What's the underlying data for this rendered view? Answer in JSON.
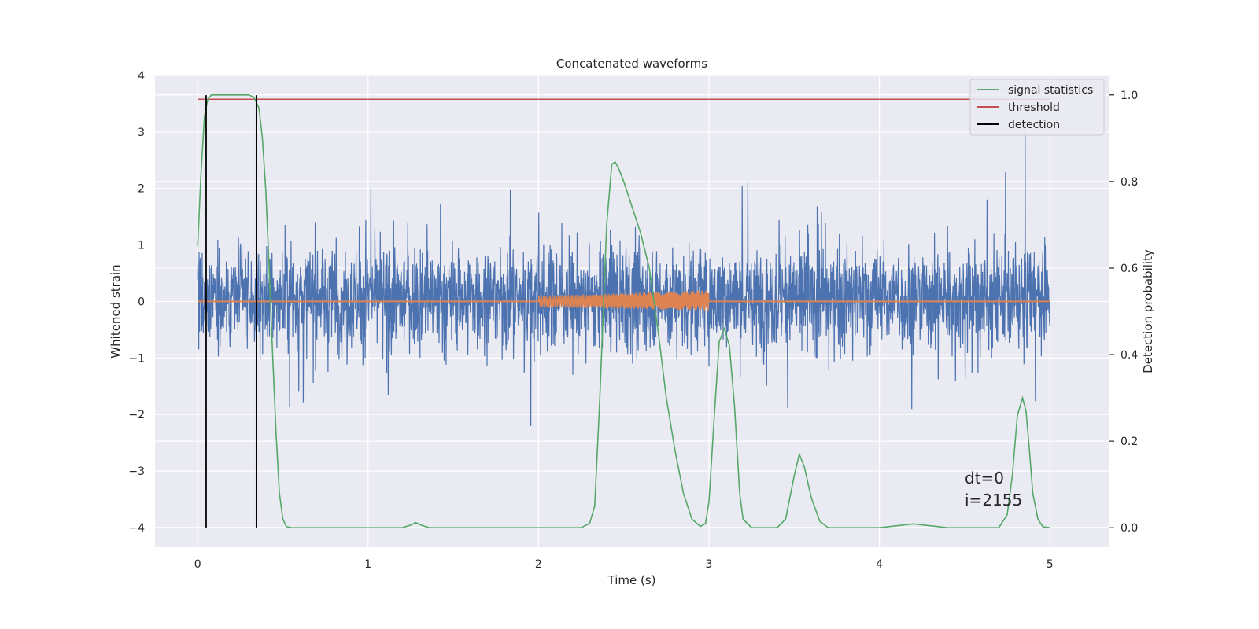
{
  "chart_data": {
    "type": "line",
    "title": "Concatenated waveforms",
    "xlabel": "Time (s)",
    "ylabel_left": "Whitened strain",
    "ylabel_right": "Detection probability",
    "xlim": [
      -0.25,
      5.35
    ],
    "ylim_left": [
      -4.35,
      4.0
    ],
    "ylim_right": [
      -0.045,
      1.045
    ],
    "xticks": [
      0,
      1,
      2,
      3,
      4,
      5
    ],
    "xtick_labels": [
      "0",
      "1",
      "2",
      "3",
      "4",
      "5"
    ],
    "yticks_left": [
      -4,
      -3,
      -2,
      -1,
      0,
      1,
      2,
      3,
      4
    ],
    "ytick_labels_left": [
      "−4",
      "−3",
      "−2",
      "−1",
      "0",
      "1",
      "2",
      "3",
      "4"
    ],
    "yticks_right": [
      0.0,
      0.2,
      0.4,
      0.6,
      0.8,
      1.0
    ],
    "ytick_labels_right": [
      "0.0",
      "0.2",
      "0.4",
      "0.6",
      "0.8",
      "1.0"
    ],
    "grid": true,
    "legend_position": "top-right",
    "annotation": [
      "dt=0",
      "i=2155"
    ],
    "colors": {
      "strain": "#4c72b0",
      "injection": "#dd8452",
      "signal_statistics": "#55a868",
      "threshold": "#c44e52",
      "detection": "#000000",
      "background": "#eaeaf2",
      "grid": "#ffffff"
    },
    "series": [
      {
        "name": "whitened strain (noise)",
        "axis": "left",
        "description_range": {
          "x": [
            0,
            5
          ],
          "typical_amplitude": [
            -1.5,
            2.0
          ],
          "max": 3.6,
          "min": -4.0
        }
      },
      {
        "name": "injected chirp",
        "axis": "left",
        "x_range": [
          2.0,
          3.0
        ],
        "amplitude_start": 0.1,
        "amplitude_end": 0.18
      },
      {
        "name": "signal statistics",
        "axis": "right",
        "x": [
          0.0,
          0.02,
          0.04,
          0.06,
          0.08,
          0.1,
          0.15,
          0.2,
          0.25,
          0.3,
          0.33,
          0.36,
          0.38,
          0.4,
          0.42,
          0.44,
          0.46,
          0.48,
          0.5,
          0.52,
          0.55,
          0.6,
          0.8,
          1.0,
          1.2,
          1.25,
          1.28,
          1.31,
          1.36,
          1.5,
          2.0,
          2.25,
          2.3,
          2.33,
          2.36,
          2.4,
          2.43,
          2.45,
          2.47,
          2.5,
          2.55,
          2.6,
          2.65,
          2.7,
          2.75,
          2.8,
          2.85,
          2.9,
          2.95,
          2.98,
          3.0,
          3.03,
          3.06,
          3.09,
          3.12,
          3.15,
          3.18,
          3.2,
          3.25,
          3.3,
          3.4,
          3.45,
          3.5,
          3.53,
          3.56,
          3.6,
          3.65,
          3.7,
          3.8,
          4.0,
          4.2,
          4.4,
          4.6,
          4.7,
          4.75,
          4.78,
          4.81,
          4.84,
          4.86,
          4.88,
          4.9,
          4.93,
          4.96,
          5.0
        ],
        "y": [
          0.65,
          0.82,
          0.95,
          0.99,
          1.0,
          1.0,
          1.0,
          1.0,
          1.0,
          1.0,
          0.995,
          0.97,
          0.9,
          0.78,
          0.6,
          0.4,
          0.22,
          0.08,
          0.02,
          0.003,
          0.0,
          0.0,
          0.0,
          0.0,
          0.0,
          0.006,
          0.012,
          0.006,
          0.0,
          0.0,
          0.0,
          0.0,
          0.01,
          0.05,
          0.3,
          0.7,
          0.84,
          0.845,
          0.83,
          0.8,
          0.74,
          0.68,
          0.6,
          0.46,
          0.3,
          0.18,
          0.08,
          0.02,
          0.003,
          0.01,
          0.06,
          0.25,
          0.43,
          0.46,
          0.42,
          0.28,
          0.08,
          0.02,
          0.0,
          0.0,
          0.0,
          0.02,
          0.12,
          0.17,
          0.14,
          0.07,
          0.015,
          0.0,
          0.0,
          0.0,
          0.009,
          0.0,
          0.0,
          0.0,
          0.03,
          0.12,
          0.26,
          0.3,
          0.27,
          0.18,
          0.08,
          0.02,
          0.002,
          0.0
        ]
      },
      {
        "name": "threshold",
        "axis": "right",
        "x": [
          0,
          5
        ],
        "y": [
          0.99,
          0.99
        ]
      },
      {
        "name": "detection",
        "axis": "left",
        "vlines": [
          0.05,
          0.345
        ],
        "y_range": [
          -4.0,
          3.65
        ]
      }
    ],
    "legend": [
      {
        "label": "signal statistics",
        "color_key": "signal_statistics"
      },
      {
        "label": "threshold",
        "color_key": "threshold"
      },
      {
        "label": "detection",
        "color_key": "detection"
      }
    ]
  }
}
